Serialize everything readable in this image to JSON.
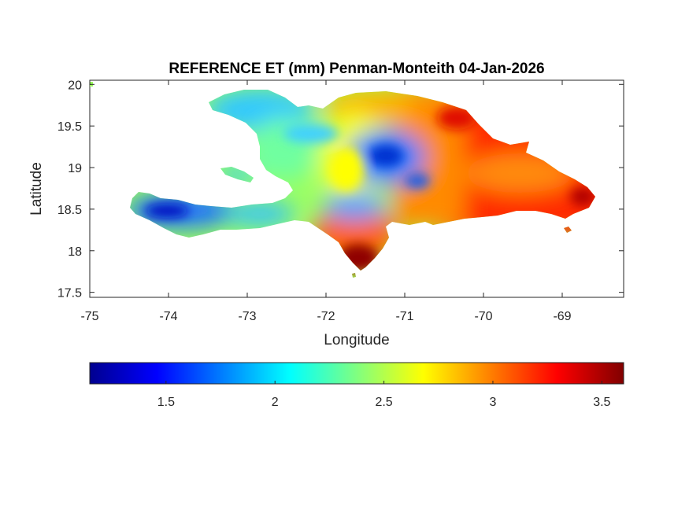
{
  "chart_data": {
    "type": "heatmap",
    "title": "REFERENCE ET (mm) Penman-Monteith 04-Jan-2026",
    "xlabel": "Longitude",
    "ylabel": "Latitude",
    "xlim": [
      -75,
      -68.22
    ],
    "ylim": [
      17.44,
      20.05
    ],
    "x_ticks": [
      -75,
      -74,
      -73,
      -72,
      -71,
      -70,
      -69
    ],
    "x_tick_labels": [
      "-75",
      "-74",
      "-73",
      "-72",
      "-71",
      "-70",
      "-69"
    ],
    "y_ticks": [
      17.5,
      18,
      18.5,
      19,
      19.5,
      20
    ],
    "y_tick_labels": [
      "17.5",
      "18",
      "18.5",
      "19",
      "19.5",
      "20"
    ],
    "grid": false,
    "colormap": "jet",
    "colorbar": {
      "orientation": "horizontal",
      "location": "below",
      "range": [
        1.15,
        3.6
      ],
      "ticks": [
        1.5,
        2,
        2.5,
        3,
        3.5
      ],
      "tick_labels": [
        "1.5",
        "2",
        "2.5",
        "3",
        "3.5"
      ],
      "colors": [
        "#00008f",
        "#0000ff",
        "#0080ff",
        "#00ffff",
        "#80ff80",
        "#ffff00",
        "#ff8000",
        "#ff0000",
        "#800000"
      ]
    },
    "region": "Hispaniola (Haiti and Dominican Republic)",
    "value_pattern": {
      "haiti_west": "low, about 1.5-2.1 mm, minimum near -74.1 lon, 18.45 lat",
      "central_mountains": "about 1.7-2.0 mm near -71.2 lon, 19.1 lat",
      "east": "high, about 3.0-3.4 mm",
      "southwest_peninsula_tip": "highest, about 3.5 mm near -71.6 lon, 17.9 lat"
    }
  }
}
